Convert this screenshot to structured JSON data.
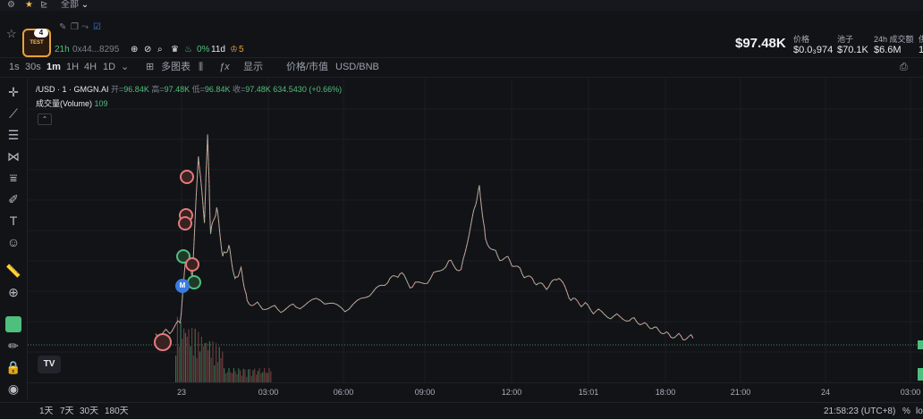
{
  "topbar": {
    "menu_label": "全部"
  },
  "token": {
    "logo_text": "TEST",
    "badge": "4",
    "age": "21h",
    "address": "0x44...8295",
    "top10_pct": "0%",
    "days": "11d",
    "holders_count": "5"
  },
  "header_price": "$97.48K",
  "stats": [
    {
      "label": "价格",
      "value": "$0.0₃974"
    },
    {
      "label": "池子",
      "value": "$70.1K"
    },
    {
      "label": "24h 成交额",
      "value": "$6.6M"
    },
    {
      "label": "供",
      "value": "1"
    }
  ],
  "toolbar": {
    "intervals": [
      "1s",
      "30s",
      "1m",
      "1H",
      "4H",
      "1D"
    ],
    "active_interval": "1m",
    "multi_chart": "多图表",
    "display": "显示",
    "price_market": "价格/市值",
    "currency": "USD/BNB"
  },
  "legend": {
    "symbol": "/USD · 1 · GMGN.AI",
    "open_label": "开=",
    "open": "96.84K",
    "high_label": "高=",
    "high": "97.48K",
    "low_label": "低=",
    "low": "96.84K",
    "close_label": "收=",
    "close": "97.48K",
    "change": "634.5430 (+0.66%)",
    "volume_label": "成交量(Volume)",
    "volume_value": "109"
  },
  "chart_data": {
    "type": "line",
    "ylabel": "",
    "x": [
      "23",
      "03:00",
      "06:00",
      "09:00",
      "12:00",
      "15:01",
      "18:00",
      "21:00",
      "24",
      "03:00"
    ],
    "price_path": [
      [
        0.0,
        0.05
      ],
      [
        0.02,
        0.06
      ],
      [
        0.04,
        0.1
      ],
      [
        0.05,
        0.4
      ],
      [
        0.06,
        0.3
      ],
      [
        0.07,
        0.85
      ],
      [
        0.08,
        0.55
      ],
      [
        0.085,
        0.95
      ],
      [
        0.09,
        0.5
      ],
      [
        0.1,
        0.62
      ],
      [
        0.11,
        0.4
      ],
      [
        0.12,
        0.45
      ],
      [
        0.13,
        0.3
      ],
      [
        0.14,
        0.35
      ],
      [
        0.15,
        0.2
      ],
      [
        0.17,
        0.18
      ],
      [
        0.2,
        0.16
      ],
      [
        0.23,
        0.17
      ],
      [
        0.27,
        0.2
      ],
      [
        0.31,
        0.15
      ],
      [
        0.35,
        0.22
      ],
      [
        0.38,
        0.28
      ],
      [
        0.4,
        0.32
      ],
      [
        0.42,
        0.26
      ],
      [
        0.45,
        0.3
      ],
      [
        0.48,
        0.38
      ],
      [
        0.5,
        0.34
      ],
      [
        0.52,
        0.6
      ],
      [
        0.53,
        0.72
      ],
      [
        0.54,
        0.48
      ],
      [
        0.56,
        0.4
      ],
      [
        0.58,
        0.38
      ],
      [
        0.6,
        0.32
      ],
      [
        0.62,
        0.28
      ],
      [
        0.64,
        0.25
      ],
      [
        0.66,
        0.3
      ],
      [
        0.68,
        0.2
      ],
      [
        0.7,
        0.18
      ],
      [
        0.72,
        0.15
      ],
      [
        0.75,
        0.13
      ],
      [
        0.78,
        0.12
      ],
      [
        0.8,
        0.1
      ],
      [
        0.82,
        0.08
      ],
      [
        0.84,
        0.05
      ],
      [
        0.86,
        0.04
      ],
      [
        0.88,
        0.03
      ]
    ],
    "last_price": "97.48K",
    "time_zone": "21:58:23 (UTC+8)"
  },
  "bottom": {
    "ranges": [
      "1天",
      "7天",
      "30天",
      "180天"
    ],
    "time": "21:58:23 (UTC+8)",
    "pct": "%",
    "log": "lo"
  }
}
